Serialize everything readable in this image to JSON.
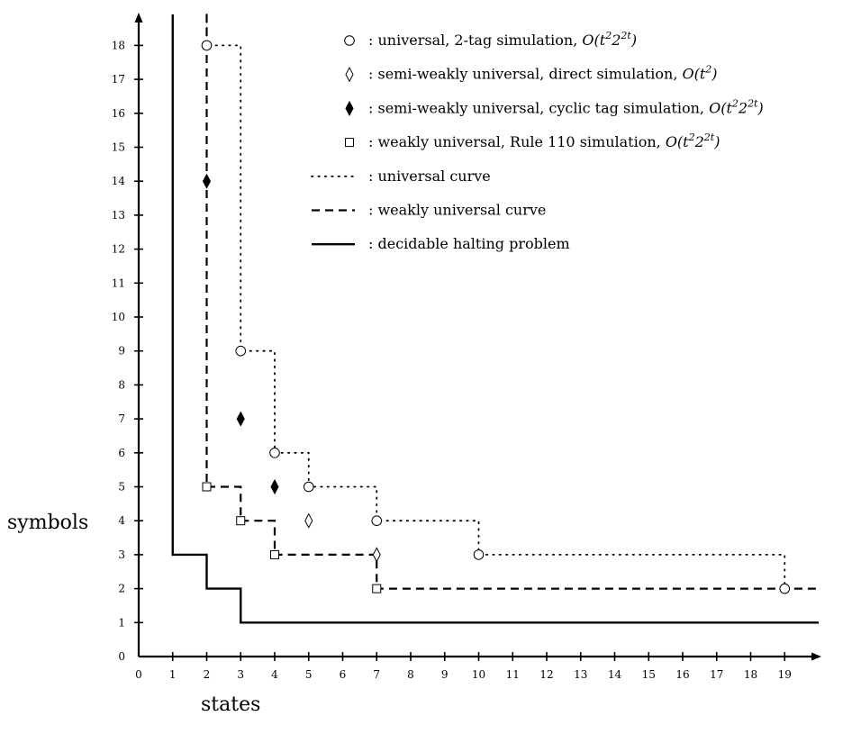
{
  "chart_data": {
    "type": "scatter",
    "xlabel": "states",
    "ylabel": "symbols",
    "xlim": [
      0,
      20
    ],
    "ylim": [
      0,
      19
    ],
    "xticks": [
      0,
      1,
      2,
      3,
      4,
      5,
      6,
      7,
      8,
      9,
      10,
      11,
      12,
      13,
      14,
      15,
      16,
      17,
      18,
      19
    ],
    "yticks": [
      0,
      1,
      2,
      3,
      4,
      5,
      6,
      7,
      8,
      9,
      10,
      11,
      12,
      13,
      14,
      15,
      16,
      17,
      18
    ],
    "grid": false,
    "legend_position": "top-right",
    "series": [
      {
        "name": "universal, 2-tag simulation, O(t²2²ᵗ)",
        "label_plain": ": universal, 2-tag simulation, ",
        "label_math": "O(t",
        "label_sup1": "2",
        "label_mid": "2",
        "label_sup2": "2t",
        "label_end": ")",
        "marker": "circle-open",
        "points": [
          [
            2,
            18
          ],
          [
            3,
            9
          ],
          [
            4,
            6
          ],
          [
            5,
            5
          ],
          [
            7,
            4
          ],
          [
            10,
            3
          ],
          [
            19,
            2
          ]
        ]
      },
      {
        "name": "semi-weakly universal, direct simulation, O(t²)",
        "label_plain": ": semi-weakly universal, direct simulation, ",
        "label_math": "O(t",
        "label_sup1": "2",
        "label_mid": "",
        "label_sup2": "",
        "label_end": ")",
        "marker": "diamond-open",
        "points": [
          [
            5,
            4
          ],
          [
            7,
            3
          ]
        ]
      },
      {
        "name": "semi-weakly universal, cyclic tag simulation, O(t²2²ᵗ)",
        "label_plain": ": semi-weakly universal, cyclic tag simulation, ",
        "label_math": "O(t",
        "label_sup1": "2",
        "label_mid": "2",
        "label_sup2": "2t",
        "label_end": ")",
        "marker": "diamond-filled",
        "points": [
          [
            2,
            14
          ],
          [
            3,
            7
          ],
          [
            4,
            5
          ]
        ]
      },
      {
        "name": "weakly universal, Rule 110 simulation, O(t²2²ᵗ)",
        "label_plain": ": weakly universal, Rule 110 simulation, ",
        "label_math": "O(t",
        "label_sup1": "2",
        "label_mid": "2",
        "label_sup2": "2t",
        "label_end": ")",
        "marker": "square-open",
        "points": [
          [
            2,
            5
          ],
          [
            3,
            4
          ],
          [
            4,
            3
          ],
          [
            7,
            2
          ]
        ]
      }
    ],
    "curves": [
      {
        "name": "universal curve",
        "label": ": universal curve",
        "style": "dotted",
        "points": [
          [
            2,
            19
          ],
          [
            2,
            18
          ],
          [
            3,
            18
          ],
          [
            3,
            9
          ],
          [
            4,
            9
          ],
          [
            4,
            6
          ],
          [
            5,
            6
          ],
          [
            5,
            5
          ],
          [
            7,
            5
          ],
          [
            7,
            4
          ],
          [
            10,
            4
          ],
          [
            10,
            3
          ],
          [
            19,
            3
          ],
          [
            19,
            2
          ]
        ]
      },
      {
        "name": "weakly universal curve",
        "label": ": weakly universal curve",
        "style": "dashed",
        "points": [
          [
            2,
            19
          ],
          [
            2,
            5
          ],
          [
            3,
            5
          ],
          [
            3,
            4
          ],
          [
            4,
            4
          ],
          [
            4,
            3
          ],
          [
            7,
            3
          ],
          [
            7,
            2
          ],
          [
            20,
            2
          ]
        ]
      },
      {
        "name": "decidable halting problem",
        "label": ": decidable halting problem",
        "style": "solid",
        "points": [
          [
            1,
            19
          ],
          [
            1,
            3
          ],
          [
            2,
            3
          ],
          [
            2,
            2
          ],
          [
            3,
            2
          ],
          [
            3,
            1
          ],
          [
            20,
            1
          ]
        ]
      }
    ]
  }
}
